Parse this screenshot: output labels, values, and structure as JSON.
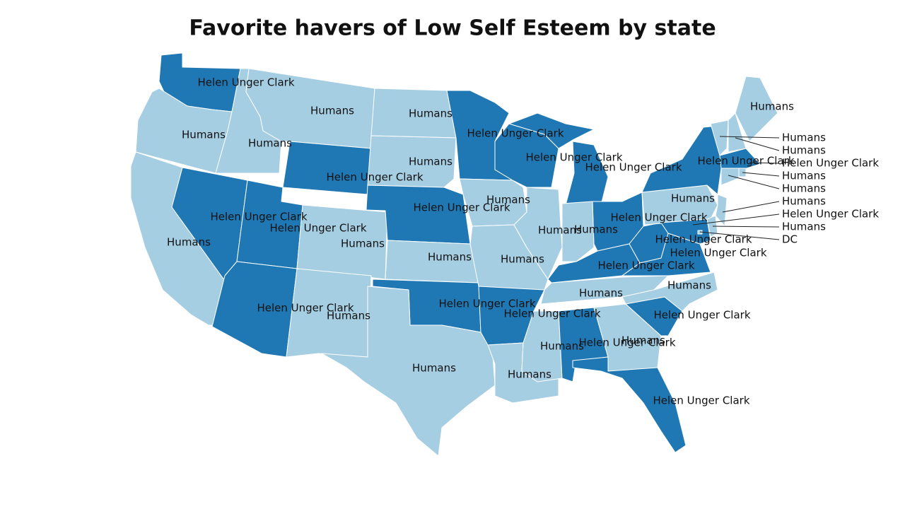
{
  "title": "Favorite havers of Low Self Esteem by state",
  "regions": [
    {
      "label": "Helen Unger Clark",
      "color": "#1f78b4"
    },
    {
      "label": "Humans",
      "color": "#a6cee3"
    },
    {
      "label": "Humans",
      "color": "#a6cee3"
    },
    {
      "label": "Humans",
      "color": "#a6cee3"
    },
    {
      "label": "Helen Unger Clark",
      "color": "#1f78b4"
    },
    {
      "label": "Humans",
      "color": "#a6cee3"
    },
    {
      "label": "Helen Unger Clark",
      "color": "#1f78b4"
    },
    {
      "label": "Helen Unger Clark",
      "color": "#1f78b4"
    },
    {
      "label": "Helen Unger Clark",
      "color": "#1f78b4"
    },
    {
      "label": "Humans",
      "color": "#a6cee3"
    },
    {
      "label": "Humans",
      "color": "#a6cee3"
    },
    {
      "label": "Humans",
      "color": "#a6cee3"
    },
    {
      "label": "Humans",
      "color": "#a6cee3"
    },
    {
      "label": "Helen Unger Clark",
      "color": "#1f78b4"
    },
    {
      "label": "Humans",
      "color": "#a6cee3"
    },
    {
      "label": "Helen Unger Clark",
      "color": "#1f78b4"
    },
    {
      "label": "Humans",
      "color": "#a6cee3"
    },
    {
      "label": "Helen Unger Clark",
      "color": "#1f78b4"
    },
    {
      "label": "Humans",
      "color": "#a6cee3"
    },
    {
      "label": "Humans",
      "color": "#a6cee3"
    },
    {
      "label": "Helen Unger Clark",
      "color": "#1f78b4"
    },
    {
      "label": "Humans",
      "color": "#a6cee3"
    },
    {
      "label": "Helen Unger Clark",
      "color": "#1f78b4"
    },
    {
      "label": "Humans",
      "color": "#a6cee3"
    },
    {
      "label": "Helen Unger Clark",
      "color": "#1f78b4"
    },
    {
      "label": "Helen Unger Clark",
      "color": "#1f78b4"
    },
    {
      "label": "Humans",
      "color": "#a6cee3"
    },
    {
      "label": "Humans",
      "color": "#a6cee3"
    },
    {
      "label": "Helen Unger Clark",
      "color": "#1f78b4"
    },
    {
      "label": "Humans",
      "color": "#a6cee3"
    },
    {
      "label": "Helen Unger Clark",
      "color": "#1f78b4"
    },
    {
      "label": "Helen Unger Clark",
      "color": "#1f78b4"
    },
    {
      "label": "Humans",
      "color": "#a6cee3"
    },
    {
      "label": "Helen Unger Clark",
      "color": "#1f78b4"
    },
    {
      "label": "Helen Unger Clark",
      "color": "#1f78b4"
    },
    {
      "label": "Humans",
      "color": "#a6cee3"
    },
    {
      "label": "Helen Unger Clark",
      "color": "#1f78b4"
    },
    {
      "label": "Humans",
      "color": "#a6cee3"
    },
    {
      "label": "Humans",
      "color": "#a6cee3"
    },
    {
      "label": "Helen Unger Clark",
      "color": "#1f78b4"
    }
  ],
  "callout_regions": [
    {
      "label": "Humans",
      "color": "#a6cee3"
    },
    {
      "label": "Humans",
      "color": "#a6cee3"
    },
    {
      "label": "Helen Unger Clark",
      "color": "#1f78b4"
    },
    {
      "label": "Humans",
      "color": "#a6cee3"
    },
    {
      "label": "Humans",
      "color": "#a6cee3"
    },
    {
      "label": "Humans",
      "color": "#a6cee3"
    },
    {
      "label": "Helen Unger Clark",
      "color": "#1f78b4"
    },
    {
      "label": "Humans",
      "color": "#a6cee3"
    },
    {
      "label": "DC",
      "color": "#a6cee3"
    }
  ]
}
